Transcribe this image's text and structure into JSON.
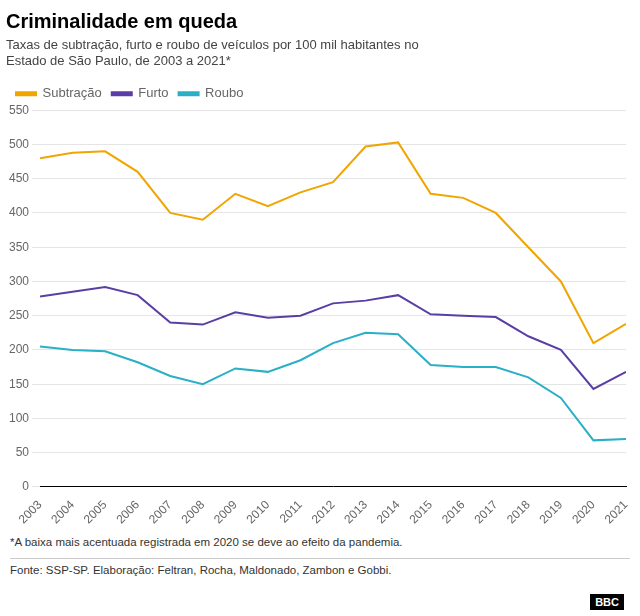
{
  "chart_data": {
    "type": "line",
    "title": "Criminalidade em queda",
    "subtitle": "Taxas de subtração, furto e roubo de veículos por 100 mil habitantes no\nEstado de São Paulo, de 2003 a 2021*",
    "annotations": [
      "*A baixa mais acentuada registrada em 2020 se deve ao efeito da pandemia.",
      "Fonte: SSP-SP. Elaboração: Feltran, Rocha, Maldonado, Zambon e Gobbi.",
      "BBC"
    ],
    "x": [
      2003,
      2004,
      2005,
      2006,
      2007,
      2008,
      2009,
      2010,
      2011,
      2012,
      2013,
      2014,
      2015,
      2016,
      2017,
      2018,
      2019,
      2020,
      2021
    ],
    "series": [
      {
        "name": "Subtração",
        "color": "#f0a500",
        "values": [
          480,
          488,
          490,
          460,
          400,
          390,
          428,
          410,
          430,
          445,
          497,
          503,
          428,
          422,
          400,
          350,
          300,
          210,
          238
        ]
      },
      {
        "name": "Furto",
        "color": "#5b3ea4",
        "values": [
          278,
          285,
          292,
          280,
          240,
          237,
          255,
          247,
          250,
          268,
          272,
          280,
          252,
          250,
          248,
          220,
          200,
          143,
          168
        ]
      },
      {
        "name": "Roubo",
        "color": "#2ab0c5",
        "values": [
          205,
          200,
          198,
          182,
          162,
          150,
          173,
          168,
          185,
          210,
          225,
          223,
          178,
          175,
          175,
          160,
          130,
          68,
          70
        ]
      }
    ],
    "xlim": [
      2003,
      2021
    ],
    "xticks": [
      2003,
      2004,
      2005,
      2006,
      2007,
      2008,
      2009,
      2010,
      2011,
      2012,
      2013,
      2014,
      2015,
      2016,
      2017,
      2018,
      2019,
      2020,
      2021
    ],
    "ylim": [
      0,
      550
    ],
    "yticks": [
      0,
      50,
      100,
      150,
      200,
      250,
      300,
      350,
      400,
      450,
      500,
      550
    ],
    "grid": true,
    "legend": "upper left"
  }
}
